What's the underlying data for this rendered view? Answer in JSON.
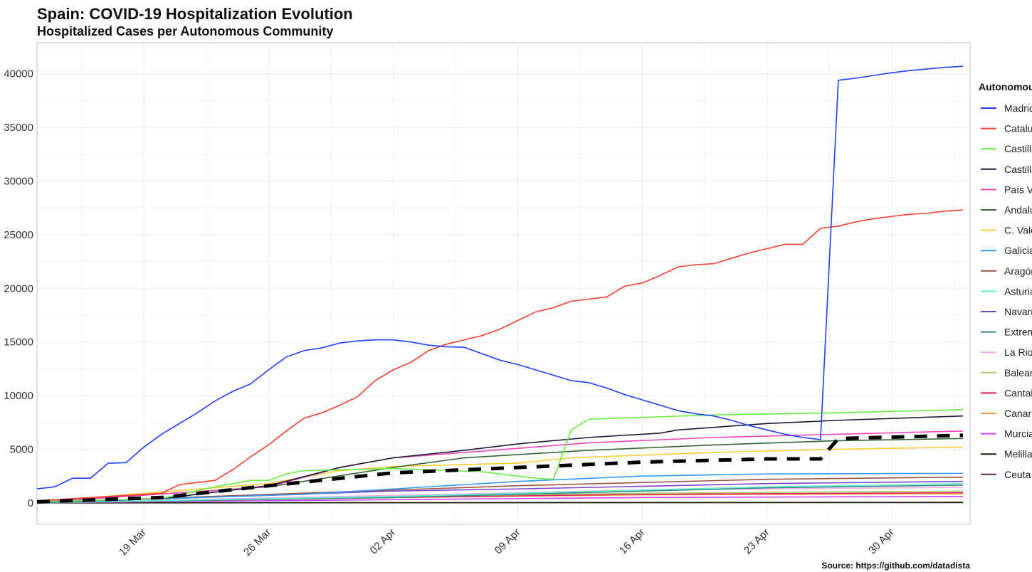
{
  "chart_data": {
    "type": "line",
    "title": "Spain: COVID-19 Hospitalization Evolution",
    "subtitle": "Hospitalized Cases per Autonomous Community",
    "caption": "Source: https://github.com/datadista",
    "xlabel": "",
    "ylabel": "",
    "xlim": [
      "03-13",
      "05-04"
    ],
    "ylim": [
      -2000,
      42900
    ],
    "yticks": [
      0,
      5000,
      10000,
      15000,
      20000,
      25000,
      30000,
      35000,
      40000
    ],
    "xticks": [
      {
        "date": "03-19",
        "label": "19 Mar"
      },
      {
        "date": "03-26",
        "label": "26 Mar"
      },
      {
        "date": "04-02",
        "label": "02 Apr"
      },
      {
        "date": "04-09",
        "label": "09 Apr"
      },
      {
        "date": "04-16",
        "label": "16 Apr"
      },
      {
        "date": "04-23",
        "label": "23 Apr"
      },
      {
        "date": "04-30",
        "label": "30 Apr"
      }
    ],
    "grid": true,
    "legend": {
      "title": "Autonomous Community",
      "placement": "right"
    },
    "series": [
      {
        "name": "Madrid",
        "color": "#2040ff",
        "points": [
          [
            "03-13",
            1300
          ],
          [
            "03-14",
            1500
          ],
          [
            "03-15",
            2300
          ],
          [
            "03-16",
            2300
          ],
          [
            "03-17",
            3700
          ],
          [
            "03-18",
            3750
          ],
          [
            "03-19",
            5200
          ],
          [
            "03-20",
            6400
          ],
          [
            "03-21",
            7400
          ],
          [
            "03-22",
            8400
          ],
          [
            "03-23",
            9500
          ],
          [
            "03-24",
            10400
          ],
          [
            "03-25",
            11100
          ],
          [
            "03-26",
            12400
          ],
          [
            "03-27",
            13600
          ],
          [
            "03-28",
            14200
          ],
          [
            "03-29",
            14450
          ],
          [
            "03-30",
            14900
          ],
          [
            "03-31",
            15100
          ],
          [
            "04-01",
            15200
          ],
          [
            "04-02",
            15200
          ],
          [
            "04-03",
            15000
          ],
          [
            "04-04",
            14700
          ],
          [
            "04-05",
            14550
          ],
          [
            "04-06",
            14500
          ],
          [
            "04-07",
            13900
          ],
          [
            "04-08",
            13300
          ],
          [
            "04-09",
            12900
          ],
          [
            "04-10",
            12400
          ],
          [
            "04-11",
            11900
          ],
          [
            "04-12",
            11400
          ],
          [
            "04-13",
            11200
          ],
          [
            "04-14",
            10700
          ],
          [
            "04-15",
            10100
          ],
          [
            "04-16",
            9600
          ],
          [
            "04-17",
            9100
          ],
          [
            "04-18",
            8600
          ],
          [
            "04-19",
            8300
          ],
          [
            "04-20",
            8100
          ],
          [
            "04-21",
            7700
          ],
          [
            "04-22",
            7200
          ],
          [
            "04-23",
            6800
          ],
          [
            "04-24",
            6400
          ],
          [
            "04-25",
            6100
          ],
          [
            "04-26",
            5900
          ],
          [
            "04-27",
            39400
          ],
          [
            "04-28",
            39600
          ],
          [
            "04-29",
            39850
          ],
          [
            "04-30",
            40100
          ],
          [
            "05-01",
            40300
          ],
          [
            "05-02",
            40450
          ],
          [
            "05-03",
            40600
          ],
          [
            "05-04",
            40700
          ]
        ]
      },
      {
        "name": "Cataluña",
        "color": "#f04030",
        "points": [
          [
            "03-13",
            200
          ],
          [
            "03-17",
            600
          ],
          [
            "03-20",
            900
          ],
          [
            "03-21",
            1700
          ],
          [
            "03-22",
            1900
          ],
          [
            "03-23",
            2100
          ],
          [
            "03-24",
            3100
          ],
          [
            "03-25",
            4300
          ],
          [
            "03-26",
            5400
          ],
          [
            "03-27",
            6700
          ],
          [
            "03-28",
            7900
          ],
          [
            "03-29",
            8400
          ],
          [
            "03-30",
            9100
          ],
          [
            "03-31",
            9900
          ],
          [
            "04-01",
            11400
          ],
          [
            "04-02",
            12400
          ],
          [
            "04-03",
            13100
          ],
          [
            "04-04",
            14200
          ],
          [
            "04-05",
            14800
          ],
          [
            "04-06",
            15200
          ],
          [
            "04-07",
            15600
          ],
          [
            "04-08",
            16200
          ],
          [
            "04-09",
            17000
          ],
          [
            "04-10",
            17800
          ],
          [
            "04-11",
            18200
          ],
          [
            "04-12",
            18800
          ],
          [
            "04-13",
            19000
          ],
          [
            "04-14",
            19200
          ],
          [
            "04-15",
            20200
          ],
          [
            "04-16",
            20500
          ],
          [
            "04-17",
            21200
          ],
          [
            "04-18",
            22000
          ],
          [
            "04-19",
            22200
          ],
          [
            "04-20",
            22300
          ],
          [
            "04-21",
            22800
          ],
          [
            "04-22",
            23300
          ],
          [
            "04-23",
            23700
          ],
          [
            "04-24",
            24100
          ],
          [
            "04-25",
            24100
          ],
          [
            "04-26",
            25600
          ],
          [
            "04-27",
            25800
          ],
          [
            "04-28",
            26200
          ],
          [
            "04-29",
            26500
          ],
          [
            "04-30",
            26700
          ],
          [
            "05-01",
            26900
          ],
          [
            "05-02",
            27000
          ],
          [
            "05-03",
            27200
          ],
          [
            "05-04",
            27300
          ]
        ]
      },
      {
        "name": "Castilla-La Mancha",
        "color": "#66ee44",
        "points": [
          [
            "03-13",
            100
          ],
          [
            "03-20",
            400
          ],
          [
            "03-23",
            1500
          ],
          [
            "03-25",
            2100
          ],
          [
            "03-26",
            2100
          ],
          [
            "03-27",
            2700
          ],
          [
            "03-28",
            3000
          ],
          [
            "04-02",
            3200
          ],
          [
            "04-07",
            2900
          ],
          [
            "04-10",
            2300
          ],
          [
            "04-11",
            2200
          ],
          [
            "04-12",
            6800
          ],
          [
            "04-13",
            7800
          ],
          [
            "04-20",
            8200
          ],
          [
            "04-27",
            8400
          ],
          [
            "05-04",
            8700
          ]
        ]
      },
      {
        "name": "Castilla y León",
        "color": "#1a1a3a",
        "points": [
          [
            "03-13",
            50
          ],
          [
            "03-20",
            400
          ],
          [
            "03-26",
            1600
          ],
          [
            "03-30",
            3300
          ],
          [
            "04-02",
            4200
          ],
          [
            "04-06",
            4900
          ],
          [
            "04-09",
            5500
          ],
          [
            "04-13",
            6100
          ],
          [
            "04-17",
            6500
          ],
          [
            "04-18",
            6800
          ],
          [
            "04-23",
            7400
          ],
          [
            "04-27",
            7700
          ],
          [
            "05-04",
            8100
          ]
        ]
      },
      {
        "name": "País Vasco",
        "color": "#ee44bb",
        "points": [
          [
            "03-13",
            50
          ],
          [
            "03-26",
            1500
          ],
          [
            "03-30",
            3300
          ],
          [
            "04-02",
            4200
          ],
          [
            "04-06",
            4700
          ],
          [
            "04-13",
            5600
          ],
          [
            "04-20",
            6100
          ],
          [
            "04-27",
            6400
          ],
          [
            "05-04",
            6700
          ]
        ]
      },
      {
        "name": "Andalucía",
        "color": "#336633",
        "points": [
          [
            "03-13",
            50
          ],
          [
            "03-26",
            1500
          ],
          [
            "04-02",
            3300
          ],
          [
            "04-06",
            4200
          ],
          [
            "04-13",
            4900
          ],
          [
            "04-20",
            5400
          ],
          [
            "04-27",
            5800
          ],
          [
            "05-04",
            6000
          ]
        ]
      },
      {
        "name": "C. Valenciana",
        "color": "#ffcc33",
        "points": [
          [
            "03-13",
            100
          ],
          [
            "03-26",
            1800
          ],
          [
            "03-30",
            3000
          ],
          [
            "04-02",
            3400
          ],
          [
            "04-09",
            3700
          ],
          [
            "04-12",
            4200
          ],
          [
            "04-20",
            4700
          ],
          [
            "04-27",
            5000
          ],
          [
            "05-04",
            5200
          ]
        ]
      },
      {
        "name": "Galicia",
        "color": "#3399ff",
        "points": [
          [
            "03-13",
            20
          ],
          [
            "03-28",
            800
          ],
          [
            "04-02",
            1300
          ],
          [
            "04-09",
            2000
          ],
          [
            "04-16",
            2500
          ],
          [
            "04-23",
            2700
          ],
          [
            "05-04",
            2750
          ]
        ]
      },
      {
        "name": "Aragón",
        "color": "#995544",
        "points": [
          [
            "03-13",
            20
          ],
          [
            "04-02",
            1200
          ],
          [
            "04-09",
            1600
          ],
          [
            "04-16",
            1900
          ],
          [
            "04-23",
            2200
          ],
          [
            "05-04",
            2400
          ]
        ]
      },
      {
        "name": "Asturias",
        "color": "#66eecc",
        "points": [
          [
            "03-13",
            10
          ],
          [
            "04-02",
            600
          ],
          [
            "04-09",
            900
          ],
          [
            "04-23",
            1500
          ],
          [
            "05-04",
            1800
          ]
        ]
      },
      {
        "name": "Navarra",
        "color": "#7744cc",
        "points": [
          [
            "03-13",
            10
          ],
          [
            "04-02",
            1100
          ],
          [
            "04-09",
            1300
          ],
          [
            "04-23",
            1800
          ],
          [
            "05-04",
            2000
          ]
        ]
      },
      {
        "name": "Extremadura",
        "color": "#338888",
        "points": [
          [
            "03-13",
            10
          ],
          [
            "04-02",
            500
          ],
          [
            "04-09",
            800
          ],
          [
            "04-23",
            1400
          ],
          [
            "05-04",
            1650
          ]
        ]
      },
      {
        "name": "La Rioja",
        "color": "#ffaaee",
        "points": [
          [
            "03-13",
            10
          ],
          [
            "04-02",
            700
          ],
          [
            "04-16",
            1200
          ],
          [
            "05-04",
            1450
          ]
        ]
      },
      {
        "name": "Baleares",
        "color": "#aacc77",
        "points": [
          [
            "03-13",
            10
          ],
          [
            "04-02",
            600
          ],
          [
            "04-16",
            900
          ],
          [
            "05-04",
            1100
          ]
        ]
      },
      {
        "name": "Cantabria",
        "color": "#dd2255",
        "points": [
          [
            "03-13",
            10
          ],
          [
            "04-02",
            500
          ],
          [
            "04-16",
            800
          ],
          [
            "05-04",
            950
          ]
        ]
      },
      {
        "name": "Canarias",
        "color": "#ff9944",
        "points": [
          [
            "03-13",
            10
          ],
          [
            "04-02",
            500
          ],
          [
            "04-16",
            750
          ],
          [
            "05-04",
            850
          ]
        ]
      },
      {
        "name": "Murcia",
        "color": "#cc44ff",
        "points": [
          [
            "03-13",
            10
          ],
          [
            "04-02",
            300
          ],
          [
            "04-16",
            500
          ],
          [
            "05-04",
            600
          ]
        ]
      },
      {
        "name": "Melilla",
        "color": "#112200",
        "points": [
          [
            "03-13",
            0
          ],
          [
            "05-04",
            50
          ]
        ]
      },
      {
        "name": "Ceuta",
        "color": "#662255",
        "points": [
          [
            "03-13",
            0
          ],
          [
            "05-04",
            30
          ]
        ]
      }
    ],
    "mean_line": {
      "color": "#000000",
      "style": "dashed",
      "points": [
        [
          "03-13",
          100
        ],
        [
          "03-20",
          500
        ],
        [
          "03-26",
          1600
        ],
        [
          "04-02",
          2800
        ],
        [
          "04-09",
          3300
        ],
        [
          "04-16",
          3800
        ],
        [
          "04-23",
          4100
        ],
        [
          "04-26",
          4100
        ],
        [
          "04-27",
          6000
        ],
        [
          "05-04",
          6300
        ]
      ]
    }
  }
}
